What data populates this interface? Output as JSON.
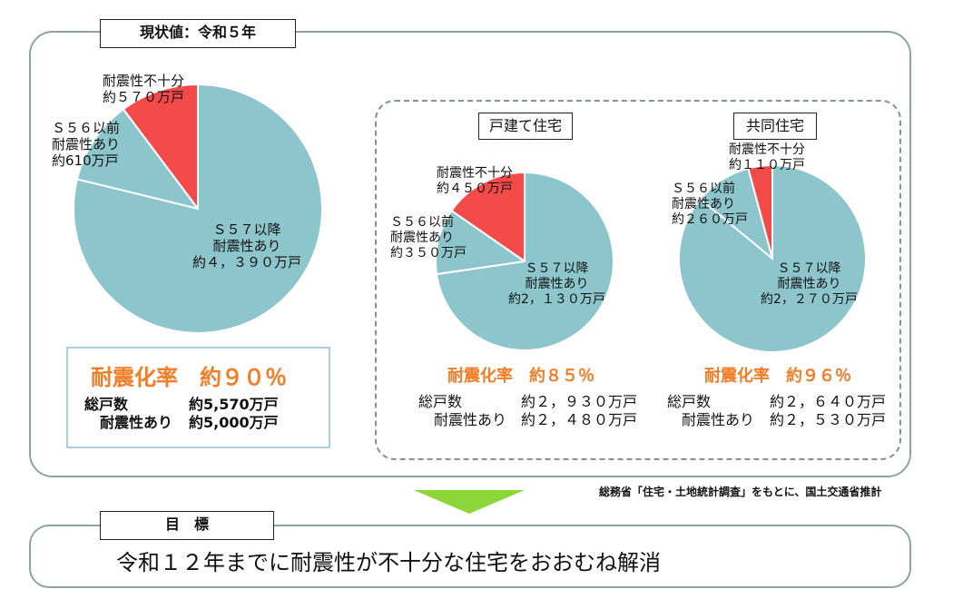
{
  "current": {
    "title": "現状値：令和５年",
    "total": {
      "rate": "耐震化率　約９０％",
      "total_label": "総戸数",
      "total_value": "約5,570万戸",
      "resistant_label": "耐震性あり",
      "resistant_value": "約5,000万戸"
    }
  },
  "source_note": "総務省「住宅・土地統計調査」をもとに、国土交通省推計",
  "goal": {
    "tag": "目　標",
    "text": "令和１２年までに耐震性が不十分な住宅をおおむね解消"
  },
  "colors": {
    "teal": "#8cc5cc",
    "red": "#f44a4a",
    "orange": "#f27d26",
    "frame": "#8fa3a3"
  },
  "chart_data": [
    {
      "type": "pie",
      "title": "現状値：令和５年",
      "slices": [
        {
          "label": "耐震性不十分\n約５７０万戸",
          "value": 570,
          "color": "#f44a4a"
        },
        {
          "label": "Ｓ５６以前\n耐震性あり\n約610万戸",
          "value": 610,
          "color": "#8cc5cc"
        },
        {
          "label": "Ｓ５７以降\n耐震性あり\n約４，３９０万戸",
          "value": 4390,
          "color": "#8cc5cc"
        }
      ],
      "summary": "耐震化率　約９０％"
    },
    {
      "type": "pie",
      "title": "戸建て住宅",
      "slices": [
        {
          "label": "耐震性不十分\n約４５０万戸",
          "value": 450,
          "color": "#f44a4a"
        },
        {
          "label": "Ｓ５６以前\n耐震性あり\n約３５０万戸",
          "value": 350,
          "color": "#8cc5cc"
        },
        {
          "label": "Ｓ５７以降\n耐震性あり\n約2，１３０万戸",
          "value": 2130,
          "color": "#8cc5cc"
        }
      ],
      "rate": "耐震化率　約８５％",
      "total_label": "総戸数",
      "total_value": "約２，９３０万戸",
      "resistant_label": "耐震性あり",
      "resistant_value": "約２，４８０万戸"
    },
    {
      "type": "pie",
      "title": "共同住宅",
      "slices": [
        {
          "label": "耐震性不十分\n約１１０万戸",
          "value": 110,
          "color": "#f44a4a"
        },
        {
          "label": "Ｓ５６以前\n耐震性あり\n約２６０万戸",
          "value": 260,
          "color": "#8cc5cc"
        },
        {
          "label": "Ｓ５７以降\n耐震性あり\n約2，２７０万戸",
          "value": 2270,
          "color": "#8cc5cc"
        }
      ],
      "rate": "耐震化率　約９６％",
      "total_label": "総戸数",
      "total_value": "約２，６４０万戸",
      "resistant_label": "耐震性あり",
      "resistant_value": "約２，５３０万戸"
    }
  ]
}
